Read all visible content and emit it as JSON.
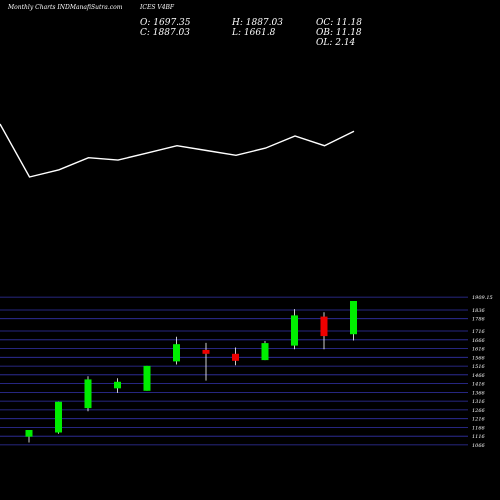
{
  "header": {
    "source": "Monthly Charts INDManafiSutra.com",
    "symbol": "ICES V4BF",
    "open": "O: 1697.35",
    "close": "C: 1887.03",
    "high": "H: 1887.03",
    "low": "L: 1661.8",
    "oc": "OC: 11.18",
    "ob": "OB: 11.18",
    "ol": "OL: 2.14"
  },
  "colors": {
    "background": "#000000",
    "up": "#00ee00",
    "down": "#ee0000",
    "grid": "#3333aa",
    "line": "#ffffff",
    "text": "#ffffff"
  },
  "chart_data": [
    {
      "type": "line",
      "x": [
        1,
        2,
        3,
        4,
        5,
        6,
        7,
        8,
        9,
        10,
        11,
        12,
        13
      ],
      "values": [
        72,
        50,
        53,
        58,
        57,
        60,
        63,
        61,
        59,
        62,
        67,
        63,
        69
      ],
      "grid": false
    },
    {
      "type": "candlestick",
      "ylim": [
        1060,
        1910
      ],
      "grid": true,
      "tick_labels": [
        "1909.15",
        "1836",
        "1786",
        "1716",
        "1666",
        "1616",
        "1566",
        "1516",
        "1466",
        "1416",
        "1366",
        "1316",
        "1266",
        "1216",
        "1166",
        "1116",
        "1066"
      ],
      "ticks": [
        1909.15,
        1836,
        1786,
        1716,
        1666,
        1616,
        1566,
        1516,
        1466,
        1416,
        1366,
        1316,
        1266,
        1216,
        1166,
        1116,
        1066
      ],
      "candles": [
        {
          "open": 1113,
          "high": 1151,
          "low": 1080,
          "close": 1151
        },
        {
          "open": 1137,
          "high": 1312,
          "low": 1130,
          "close": 1312
        },
        {
          "open": 1276,
          "high": 1458,
          "low": 1258,
          "close": 1440
        },
        {
          "open": 1389,
          "high": 1447,
          "low": 1363,
          "close": 1426
        },
        {
          "open": 1375,
          "high": 1517,
          "low": 1375,
          "close": 1517
        },
        {
          "open": 1543,
          "high": 1683,
          "low": 1525,
          "close": 1641
        },
        {
          "open": 1608,
          "high": 1648,
          "low": 1433,
          "close": 1586
        },
        {
          "open": 1586,
          "high": 1622,
          "low": 1521,
          "close": 1546
        },
        {
          "open": 1550,
          "high": 1659,
          "low": 1550,
          "close": 1647
        },
        {
          "open": 1633,
          "high": 1841,
          "low": 1612,
          "close": 1805
        },
        {
          "open": 1798,
          "high": 1823,
          "low": 1612,
          "close": 1687
        },
        {
          "open": 1697.35,
          "high": 1887.03,
          "low": 1661.8,
          "close": 1887.03
        }
      ]
    }
  ]
}
